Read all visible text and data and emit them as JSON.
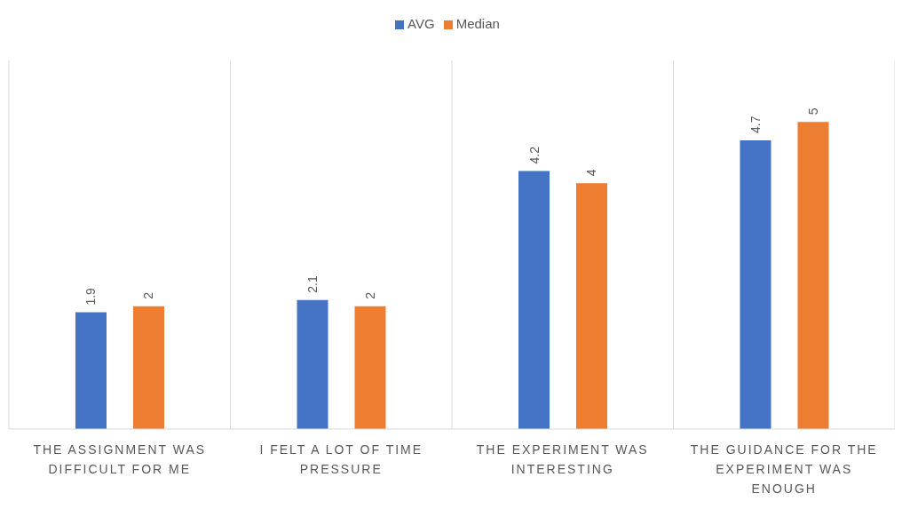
{
  "chart_data": {
    "type": "bar",
    "categories": [
      "THE ASSIGNMENT WAS DIFFICULT FOR ME",
      "I FELT A LOT OF TIME PRESSURE",
      "THE EXPERIMENT WAS INTERESTING",
      "THE GUIDANCE FOR THE EXPERIMENT WAS ENOUGH"
    ],
    "series": [
      {
        "name": "AVG",
        "color": "#4472c4",
        "values": [
          1.9,
          2.1,
          4.2,
          4.7
        ]
      },
      {
        "name": "Median",
        "color": "#ed7d31",
        "values": [
          2,
          2,
          4,
          5
        ]
      }
    ],
    "ylim": [
      0,
      6
    ],
    "data_labels": true,
    "grid": "x",
    "legend": "top"
  }
}
